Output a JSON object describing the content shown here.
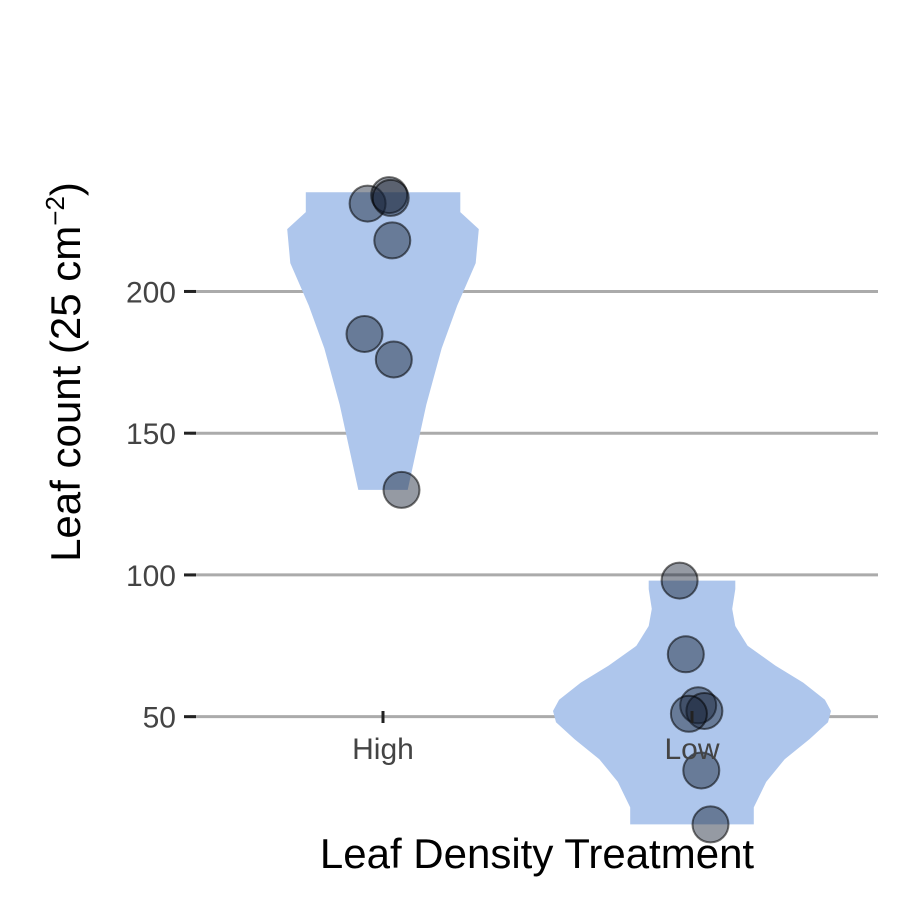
{
  "chart_data": {
    "type": "violin",
    "xlabel": "Leaf Density Treatment",
    "ylabel": "Leaf count (25 cm",
    "ylabel_superscript": "−2",
    "ylabel_close": ")",
    "categories": [
      "High",
      "Low"
    ],
    "y_ticks": [
      50,
      100,
      150,
      200
    ],
    "y_tick_labels": [
      "50",
      "100",
      "150",
      "200"
    ],
    "ylim": [
      5,
      240
    ],
    "grid": "horizontal",
    "legend": "none",
    "colors": {
      "violin_fill": "#aec6ec",
      "point_fill": "#141e32",
      "gridline": "#ababab"
    },
    "series": [
      {
        "category": "High",
        "points": [
          {
            "y": 231,
            "jitter": -0.05
          },
          {
            "y": 234,
            "jitter": 0.02
          },
          {
            "y": 233,
            "jitter": 0.025
          },
          {
            "y": 218,
            "jitter": 0.03
          },
          {
            "y": 185,
            "jitter": -0.06
          },
          {
            "y": 176,
            "jitter": 0.035
          },
          {
            "y": 130,
            "jitter": 0.06
          }
        ],
        "violin": {
          "y": [
            130,
            140,
            160,
            180,
            195,
            210,
            222,
            228,
            235
          ],
          "half_width": [
            0.08,
            0.1,
            0.14,
            0.19,
            0.24,
            0.3,
            0.31,
            0.25,
            0.25
          ]
        }
      },
      {
        "category": "Low",
        "points": [
          {
            "y": 98,
            "jitter": -0.04
          },
          {
            "y": 72,
            "jitter": -0.02
          },
          {
            "y": 54,
            "jitter": 0.02
          },
          {
            "y": 52,
            "jitter": 0.04
          },
          {
            "y": 51,
            "jitter": -0.01
          },
          {
            "y": 31,
            "jitter": 0.03
          },
          {
            "y": 12,
            "jitter": 0.06
          }
        ],
        "violin": {
          "y": [
            12,
            18,
            27,
            35,
            42,
            48,
            52,
            56,
            62,
            68,
            75,
            82,
            88,
            95,
            98
          ],
          "half_width": [
            0.2,
            0.2,
            0.24,
            0.3,
            0.38,
            0.44,
            0.45,
            0.43,
            0.36,
            0.27,
            0.18,
            0.14,
            0.13,
            0.14,
            0.14
          ]
        }
      }
    ]
  }
}
